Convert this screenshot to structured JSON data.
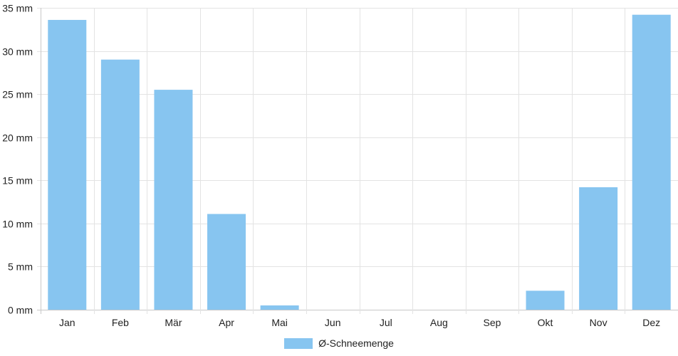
{
  "chart_data": {
    "type": "bar",
    "categories": [
      "Jan",
      "Feb",
      "Mär",
      "Apr",
      "Mai",
      "Jun",
      "Jul",
      "Aug",
      "Sep",
      "Okt",
      "Nov",
      "Dez"
    ],
    "series": [
      {
        "name": "Ø-Schneemenge",
        "values": [
          33.6,
          29.0,
          25.5,
          11.1,
          0.5,
          0,
          0,
          0,
          0,
          2.2,
          14.2,
          34.2
        ],
        "color": "#87c5f0"
      }
    ],
    "ylim": [
      0,
      35
    ],
    "y_ticks": [
      0,
      5,
      10,
      15,
      20,
      25,
      30,
      35
    ],
    "y_unit": "mm",
    "grid": true,
    "legend_position": "bottom"
  },
  "legend": {
    "label": "Ø-Schneemenge",
    "color": "#87c5f0"
  }
}
